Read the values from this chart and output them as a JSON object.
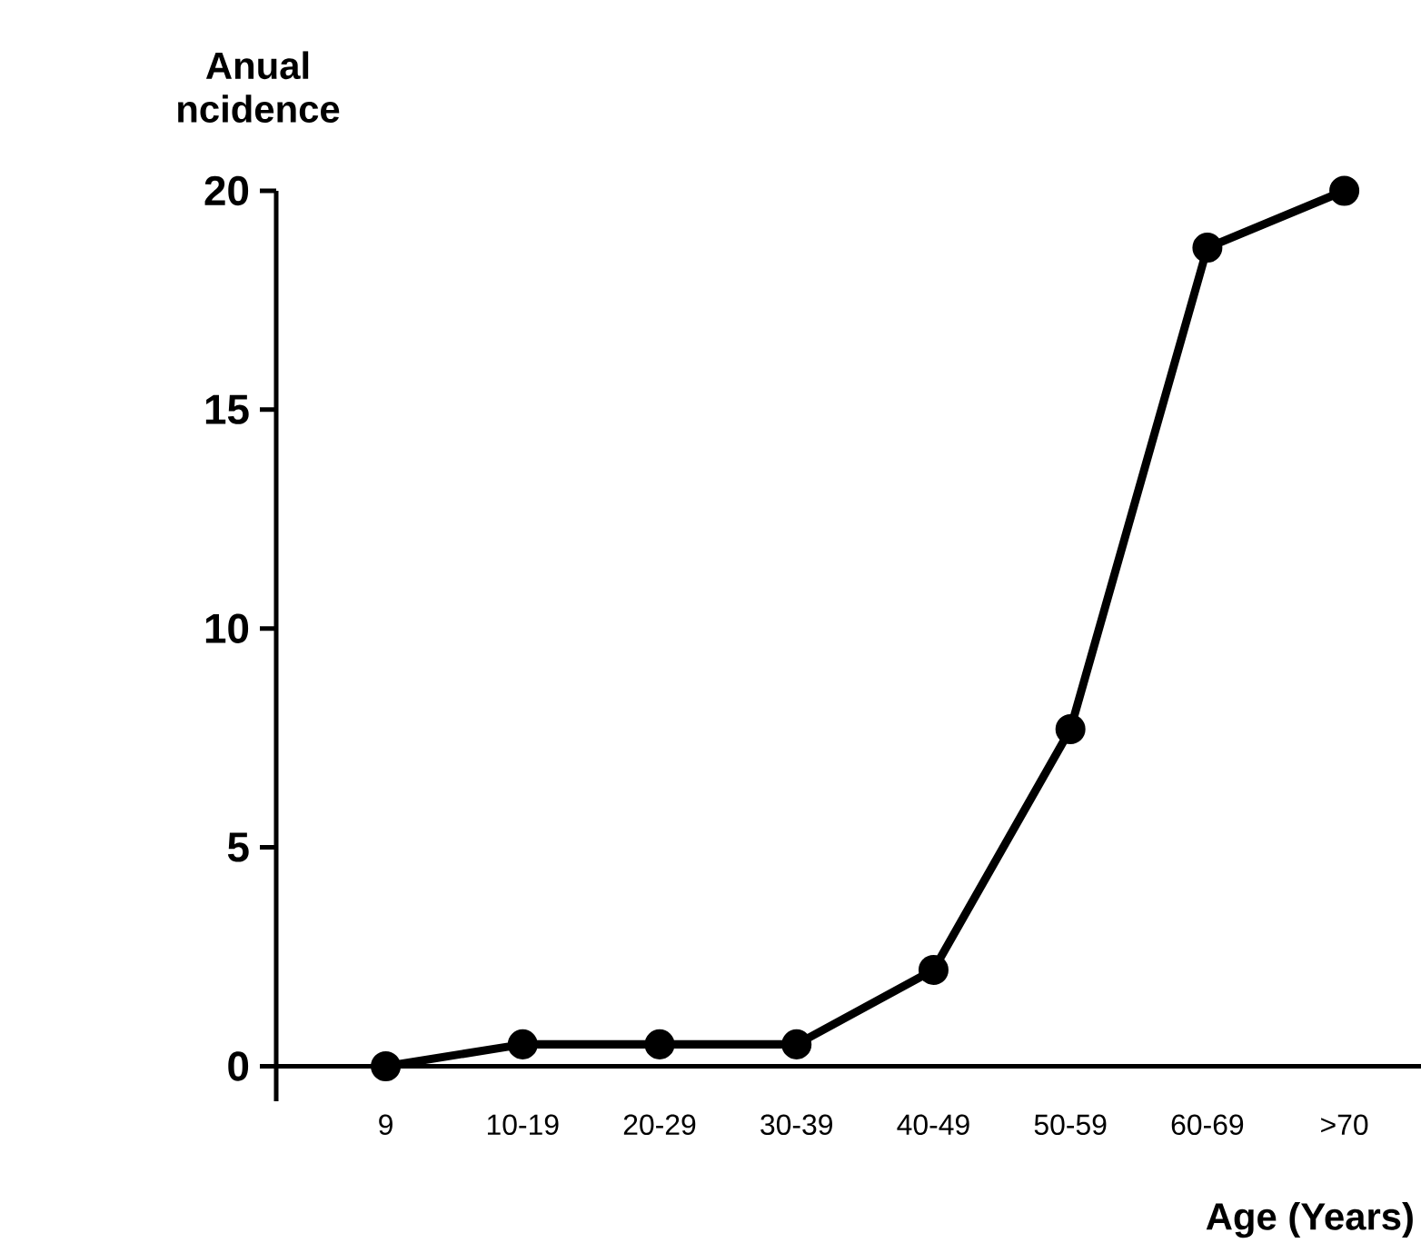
{
  "chart_data": {
    "type": "line",
    "ylabel": "Anual ncidence",
    "xlabel": "Age (Years)",
    "categories": [
      "9",
      "10-19",
      "20-29",
      "30-39",
      "40-49",
      "50-59",
      "60-69",
      ">70"
    ],
    "values": [
      0,
      0.5,
      0.5,
      0.5,
      2.2,
      7.7,
      18.7,
      20
    ],
    "color": "#000000",
    "marker": "circle",
    "line_style": "solid",
    "ylim": [
      -0.8,
      20
    ],
    "yticks": [
      0,
      5,
      10,
      15,
      20
    ]
  }
}
